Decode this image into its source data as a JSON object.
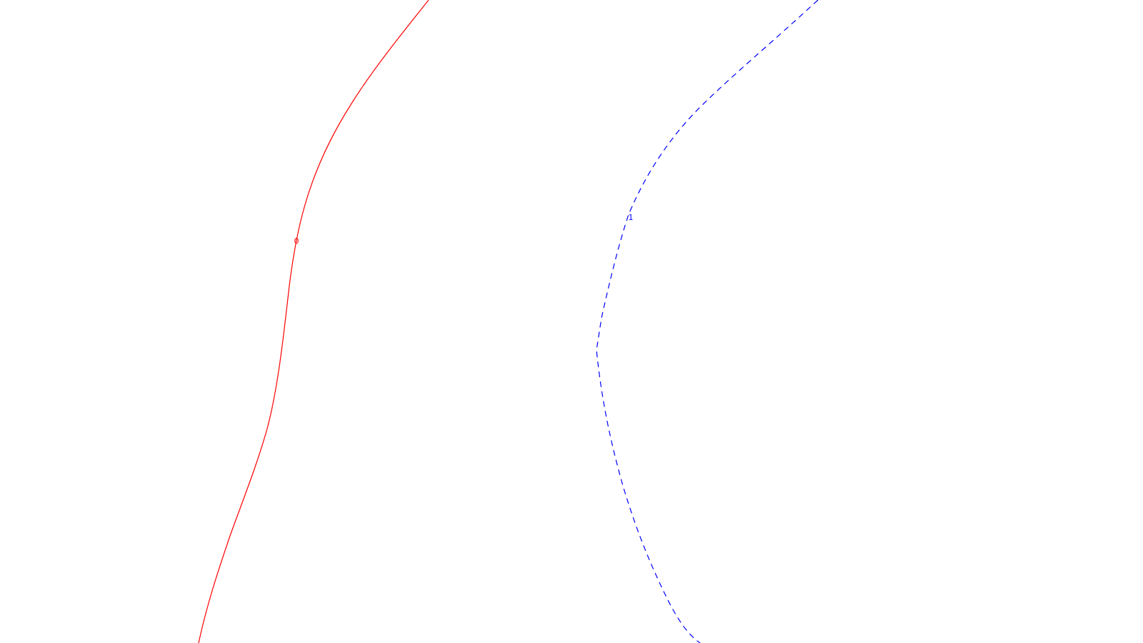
{
  "curves": [
    {
      "id": "red",
      "label": "0",
      "color": "#ff0000",
      "style": "solid"
    },
    {
      "id": "blue",
      "label": "1",
      "color": "#0000ff",
      "style": "dashed"
    }
  ],
  "background_color": "#ffffff"
}
